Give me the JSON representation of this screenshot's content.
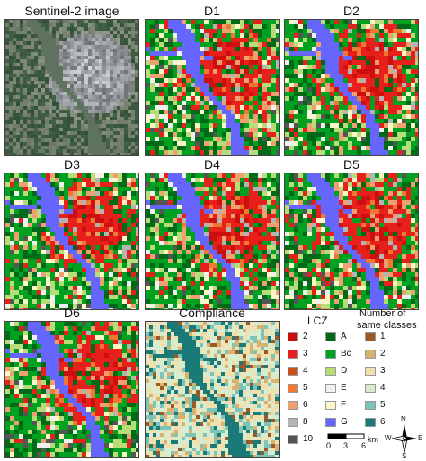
{
  "panels": [
    {
      "id": "sentinel",
      "title": "Sentinel-2 image",
      "kind": "satellite"
    },
    {
      "id": "d1",
      "title": "D1",
      "kind": "lcz"
    },
    {
      "id": "d2",
      "title": "D2",
      "kind": "lcz"
    },
    {
      "id": "d3",
      "title": "D3",
      "kind": "lcz"
    },
    {
      "id": "d4",
      "title": "D4",
      "kind": "lcz"
    },
    {
      "id": "d5",
      "title": "D5",
      "kind": "lcz"
    },
    {
      "id": "d6",
      "title": "D6",
      "kind": "lcz"
    },
    {
      "id": "compliance",
      "title": "Compliance",
      "kind": "compliance"
    }
  ],
  "lcz_legend": {
    "title": "LCZ",
    "items": [
      {
        "label": "2",
        "color": "#cc1010"
      },
      {
        "label": "3",
        "color": "#e8201c"
      },
      {
        "label": "4",
        "color": "#c8501e"
      },
      {
        "label": "5",
        "color": "#f07830"
      },
      {
        "label": "6",
        "color": "#f0a070"
      },
      {
        "label": "8",
        "color": "#b4b4b4"
      },
      {
        "label": "10",
        "color": "#555555"
      },
      {
        "label": "A",
        "color": "#006a18"
      },
      {
        "label": "Bc",
        "color": "#00a020"
      },
      {
        "label": "D",
        "color": "#b8dc78"
      },
      {
        "label": "E",
        "color": "#f0f0f0"
      },
      {
        "label": "F",
        "color": "#fff6c8"
      },
      {
        "label": "G",
        "color": "#6666ff"
      }
    ]
  },
  "compliance_legend": {
    "title_line1": "Number of",
    "title_line2": "same classes",
    "items": [
      {
        "label": "1",
        "color": "#9a5a28"
      },
      {
        "label": "2",
        "color": "#d8b070"
      },
      {
        "label": "3",
        "color": "#f0e0b0"
      },
      {
        "label": "4",
        "color": "#d8ecd0"
      },
      {
        "label": "5",
        "color": "#7cc4b8"
      },
      {
        "label": "6",
        "color": "#1a7a78"
      }
    ]
  },
  "scale_bar": {
    "ticks": [
      "0",
      "3",
      "6"
    ],
    "unit": "km"
  },
  "north_arrow": {
    "n": "N",
    "s": "S",
    "e": "E",
    "w": "W"
  },
  "colors": {
    "river": "#6666ff",
    "built": "#dd1a1a",
    "veg": "#1a9a28",
    "satellite_base": "#6c7a78"
  }
}
